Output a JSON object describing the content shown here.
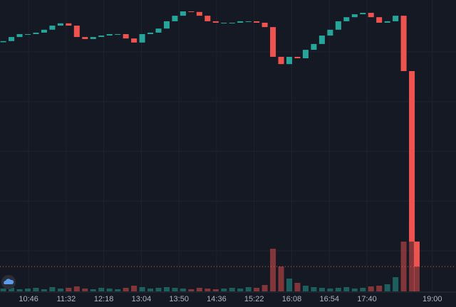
{
  "chart_data": {
    "type": "candlestick",
    "x": [
      615,
      625,
      635,
      645,
      655,
      665,
      675,
      685,
      695,
      705,
      715,
      725,
      735,
      745,
      755,
      765,
      775,
      785,
      795,
      805,
      815,
      825,
      835,
      845,
      855,
      865,
      875,
      885,
      895,
      905,
      915,
      925,
      935,
      945,
      955,
      965,
      975,
      985,
      995,
      1005,
      1015,
      1025,
      1035,
      1045,
      1055,
      1065,
      1075,
      1085,
      1095,
      1105,
      1115,
      1121
    ],
    "open": [
      85.5,
      85.9,
      87.3,
      88.3,
      88.3,
      88.8,
      89.8,
      91.2,
      92.0,
      91.2,
      87.3,
      86.6,
      87.3,
      87.8,
      88.3,
      88.3,
      86.8,
      85.4,
      88.3,
      88.8,
      90.2,
      92.7,
      94.6,
      96.1,
      95.9,
      94.6,
      92.7,
      92.2,
      92.2,
      92.2,
      92.7,
      92.7,
      92.2,
      90.7,
      80.5,
      78.0,
      80.5,
      80.0,
      82.9,
      84.9,
      87.8,
      89.8,
      92.7,
      94.1,
      95.1,
      95.6,
      94.1,
      92.2,
      92.7,
      94.6,
      75.6,
      17.1
    ],
    "close": [
      85.9,
      87.3,
      88.3,
      88.3,
      88.8,
      89.8,
      91.2,
      92.0,
      91.2,
      87.3,
      86.6,
      87.3,
      87.8,
      88.3,
      88.3,
      86.8,
      85.4,
      88.3,
      88.8,
      90.2,
      92.7,
      94.6,
      96.1,
      95.9,
      94.6,
      92.7,
      92.2,
      92.2,
      92.2,
      92.7,
      92.7,
      92.2,
      90.7,
      80.5,
      78.0,
      80.5,
      80.0,
      82.9,
      84.9,
      87.8,
      89.8,
      92.7,
      94.1,
      95.1,
      95.6,
      94.1,
      92.2,
      92.7,
      94.6,
      75.6,
      17.1,
      8.5
    ],
    "volume": [
      4,
      5,
      3,
      4,
      5,
      3,
      6,
      4,
      5,
      7,
      4,
      3,
      5,
      4,
      3,
      5,
      8,
      6,
      4,
      5,
      6,
      5,
      4,
      3,
      5,
      4,
      3,
      4,
      5,
      4,
      6,
      5,
      9,
      60,
      35,
      18,
      12,
      8,
      6,
      5,
      4,
      5,
      6,
      4,
      5,
      7,
      8,
      10,
      20,
      70,
      95,
      60
    ],
    "up_color": "#26a69a",
    "down_color": "#ef5350",
    "xlim": [
      611,
      1169
    ],
    "ylim": [
      0,
      100
    ],
    "volume_lim": [
      0,
      100
    ],
    "xticks": [
      {
        "value": 646,
        "label": "10:46"
      },
      {
        "value": 692,
        "label": "11:32"
      },
      {
        "value": 738,
        "label": "12:18"
      },
      {
        "value": 784,
        "label": "13:04"
      },
      {
        "value": 830,
        "label": "13:50"
      },
      {
        "value": 876,
        "label": "14:36"
      },
      {
        "value": 922,
        "label": "15:22"
      },
      {
        "value": 968,
        "label": "16:08"
      },
      {
        "value": 1014,
        "label": "16:54"
      },
      {
        "value": 1060,
        "label": "17:40"
      },
      {
        "value": 1140,
        "label": "19:00"
      }
    ],
    "grid": true
  }
}
